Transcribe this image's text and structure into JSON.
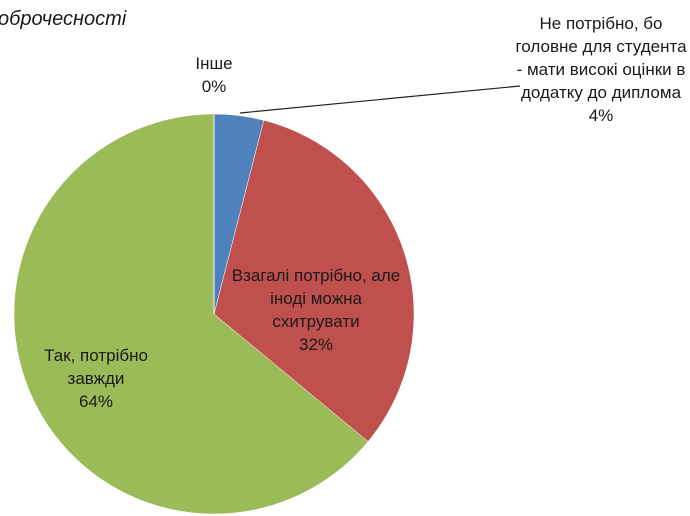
{
  "chart_data": {
    "type": "pie",
    "title": "оброчесності",
    "categories": [
      "Інше",
      "Не потрібно, бо головне для студента - мати високі оцінки в додатку до диплома",
      "Взагалі потрібно, але іноді можна схитрувати",
      "Так, потрібно завжди"
    ],
    "values": [
      0,
      4,
      32,
      64
    ],
    "value_labels": [
      "0%",
      "4%",
      "32%",
      "64%"
    ],
    "colors": [
      "#8064a2",
      "#4f81bd",
      "#c0504d",
      "#9bbb59"
    ]
  }
}
